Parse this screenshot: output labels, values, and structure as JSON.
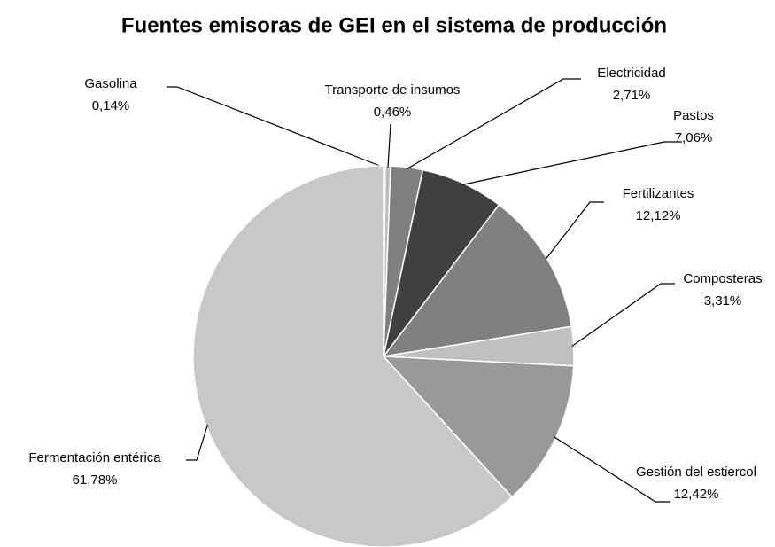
{
  "chart_data": {
    "type": "pie",
    "title": "Fuentes emisoras de GEI en el sistema de producción",
    "categories": [
      "Gasolina",
      "Transporte de insumos",
      "Electricidad",
      "Pastos",
      "Fertilizantes",
      "Composteras",
      "Gestión del estiercol",
      "Fermentación entérica"
    ],
    "values": [
      0.14,
      0.46,
      2.71,
      7.06,
      12.12,
      3.31,
      12.42,
      61.78
    ],
    "value_labels": [
      "0,14%",
      "0,46%",
      "2,71%",
      "7,06%",
      "12,12%",
      "3,31%",
      "12,42%",
      "61,78%"
    ],
    "colors": [
      "#d0d0d0",
      "#bdbdbd",
      "#7f7f7f",
      "#404040",
      "#808080",
      "#c0c0c0",
      "#999999",
      "#c8c8c8"
    ]
  }
}
